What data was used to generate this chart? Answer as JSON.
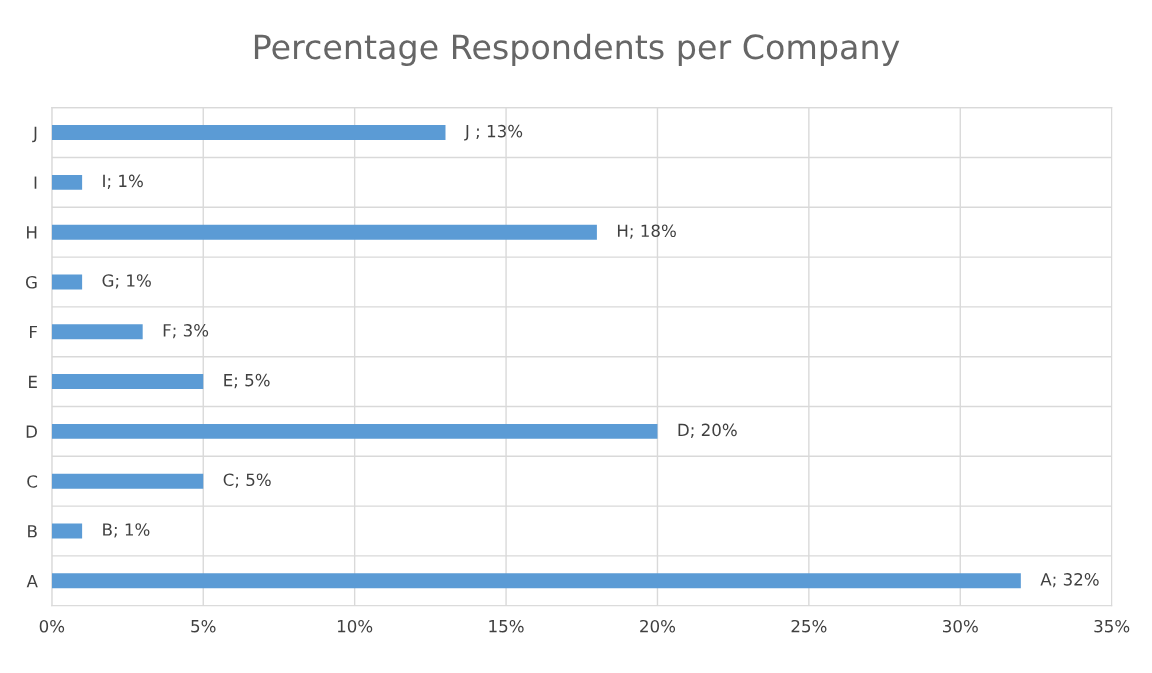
{
  "chart_data": {
    "type": "bar",
    "orientation": "horizontal",
    "title": "Percentage Respondents per Company",
    "categories": [
      "J",
      "I",
      "H",
      "G",
      "F",
      "E",
      "D",
      "C",
      "B",
      "A"
    ],
    "values": [
      13,
      1,
      18,
      1,
      3,
      5,
      20,
      5,
      1,
      32
    ],
    "value_labels": [
      "J ; 13%",
      "I; 1%",
      "H; 18%",
      "G; 1%",
      "F; 3%",
      "E; 5%",
      "D; 20%",
      "C; 5%",
      "B; 1%",
      "A; 32%"
    ],
    "color": "#5b9bd5",
    "xlim": [
      0,
      35
    ],
    "xticks": [
      {
        "value": 0,
        "label": "0%"
      },
      {
        "value": 5,
        "label": "5%"
      },
      {
        "value": 10,
        "label": "10%"
      },
      {
        "value": 15,
        "label": "15%"
      },
      {
        "value": 20,
        "label": "20%"
      },
      {
        "value": 25,
        "label": "25%"
      },
      {
        "value": 30,
        "label": "30%"
      },
      {
        "value": 35,
        "label": "35%"
      }
    ],
    "grid": true,
    "legend": false
  }
}
